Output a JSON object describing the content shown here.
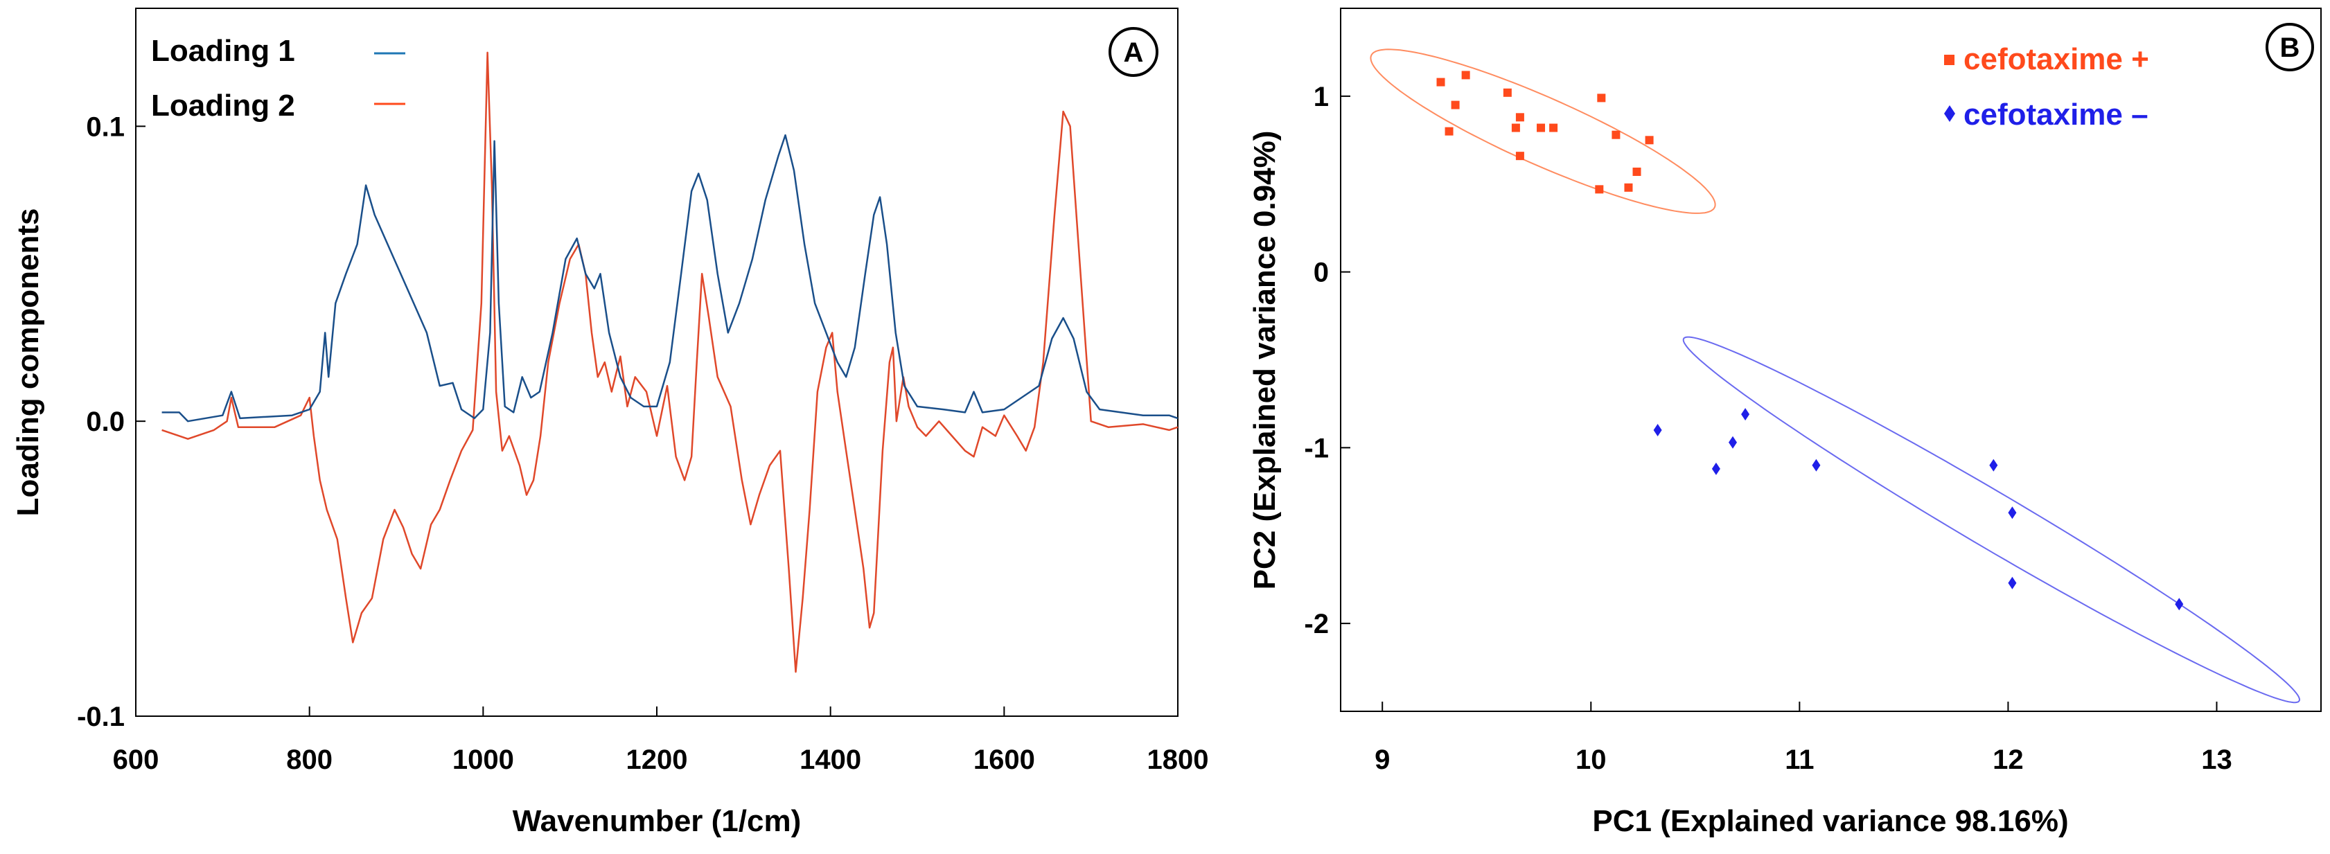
{
  "chart_data": [
    {
      "panel": "A",
      "type": "line",
      "xlabel": "Wavenumber (1/cm)",
      "ylabel": "Loading components",
      "xlim": [
        600,
        1800
      ],
      "ylim": [
        -0.1,
        0.14
      ],
      "x_ticks": [
        "600",
        "800",
        "1000",
        "1200",
        "1400",
        "1600",
        "1800"
      ],
      "y_ticks": [
        "-0.1",
        "0.0",
        "0.1"
      ],
      "series": [
        {
          "name": "Loading 1",
          "color": "#1f77b4",
          "line_color": "#1a4f8a",
          "points": [
            [
              630,
              0.003
            ],
            [
              650,
              0.003
            ],
            [
              660,
              0.0
            ],
            [
              700,
              0.002
            ],
            [
              710,
              0.01
            ],
            [
              720,
              0.001
            ],
            [
              780,
              0.002
            ],
            [
              800,
              0.004
            ],
            [
              812,
              0.01
            ],
            [
              818,
              0.03
            ],
            [
              822,
              0.015
            ],
            [
              830,
              0.04
            ],
            [
              842,
              0.05
            ],
            [
              855,
              0.06
            ],
            [
              865,
              0.08
            ],
            [
              875,
              0.07
            ],
            [
              890,
              0.06
            ],
            [
              905,
              0.05
            ],
            [
              920,
              0.04
            ],
            [
              935,
              0.03
            ],
            [
              950,
              0.012
            ],
            [
              965,
              0.013
            ],
            [
              975,
              0.004
            ],
            [
              990,
              0.001
            ],
            [
              1000,
              0.004
            ],
            [
              1008,
              0.03
            ],
            [
              1013,
              0.095
            ],
            [
              1018,
              0.04
            ],
            [
              1025,
              0.005
            ],
            [
              1035,
              0.003
            ],
            [
              1045,
              0.015
            ],
            [
              1055,
              0.008
            ],
            [
              1065,
              0.01
            ],
            [
              1080,
              0.03
            ],
            [
              1095,
              0.055
            ],
            [
              1108,
              0.062
            ],
            [
              1118,
              0.05
            ],
            [
              1128,
              0.045
            ],
            [
              1135,
              0.05
            ],
            [
              1145,
              0.03
            ],
            [
              1158,
              0.015
            ],
            [
              1170,
              0.008
            ],
            [
              1185,
              0.005
            ],
            [
              1200,
              0.005
            ],
            [
              1215,
              0.02
            ],
            [
              1228,
              0.05
            ],
            [
              1240,
              0.078
            ],
            [
              1248,
              0.084
            ],
            [
              1258,
              0.075
            ],
            [
              1270,
              0.05
            ],
            [
              1282,
              0.03
            ],
            [
              1295,
              0.04
            ],
            [
              1310,
              0.055
            ],
            [
              1325,
              0.075
            ],
            [
              1340,
              0.09
            ],
            [
              1348,
              0.097
            ],
            [
              1358,
              0.085
            ],
            [
              1370,
              0.06
            ],
            [
              1382,
              0.04
            ],
            [
              1395,
              0.03
            ],
            [
              1408,
              0.02
            ],
            [
              1418,
              0.015
            ],
            [
              1428,
              0.025
            ],
            [
              1440,
              0.05
            ],
            [
              1450,
              0.07
            ],
            [
              1457,
              0.076
            ],
            [
              1465,
              0.06
            ],
            [
              1475,
              0.03
            ],
            [
              1485,
              0.012
            ],
            [
              1500,
              0.005
            ],
            [
              1530,
              0.004
            ],
            [
              1555,
              0.003
            ],
            [
              1565,
              0.01
            ],
            [
              1575,
              0.003
            ],
            [
              1600,
              0.004
            ],
            [
              1620,
              0.008
            ],
            [
              1640,
              0.012
            ],
            [
              1655,
              0.028
            ],
            [
              1668,
              0.035
            ],
            [
              1680,
              0.028
            ],
            [
              1695,
              0.01
            ],
            [
              1710,
              0.004
            ],
            [
              1760,
              0.002
            ],
            [
              1790,
              0.002
            ],
            [
              1800,
              0.001
            ]
          ]
        },
        {
          "name": "Loading 2",
          "color": "#ff4a1c",
          "line_color": "#e0482a",
          "points": [
            [
              630,
              -0.003
            ],
            [
              660,
              -0.006
            ],
            [
              690,
              -0.003
            ],
            [
              705,
              0.0
            ],
            [
              710,
              0.008
            ],
            [
              718,
              -0.002
            ],
            [
              760,
              -0.002
            ],
            [
              790,
              0.002
            ],
            [
              800,
              0.008
            ],
            [
              805,
              -0.005
            ],
            [
              812,
              -0.02
            ],
            [
              820,
              -0.03
            ],
            [
              832,
              -0.04
            ],
            [
              842,
              -0.06
            ],
            [
              850,
              -0.075
            ],
            [
              860,
              -0.065
            ],
            [
              872,
              -0.06
            ],
            [
              885,
              -0.04
            ],
            [
              898,
              -0.03
            ],
            [
              908,
              -0.036
            ],
            [
              918,
              -0.045
            ],
            [
              928,
              -0.05
            ],
            [
              940,
              -0.035
            ],
            [
              950,
              -0.03
            ],
            [
              962,
              -0.02
            ],
            [
              975,
              -0.01
            ],
            [
              988,
              -0.003
            ],
            [
              998,
              0.04
            ],
            [
              1005,
              0.125
            ],
            [
              1010,
              0.08
            ],
            [
              1015,
              0.01
            ],
            [
              1022,
              -0.01
            ],
            [
              1030,
              -0.005
            ],
            [
              1042,
              -0.015
            ],
            [
              1050,
              -0.025
            ],
            [
              1058,
              -0.02
            ],
            [
              1066,
              -0.005
            ],
            [
              1075,
              0.02
            ],
            [
              1088,
              0.04
            ],
            [
              1100,
              0.055
            ],
            [
              1110,
              0.06
            ],
            [
              1118,
              0.05
            ],
            [
              1125,
              0.03
            ],
            [
              1132,
              0.015
            ],
            [
              1140,
              0.02
            ],
            [
              1148,
              0.01
            ],
            [
              1158,
              0.022
            ],
            [
              1166,
              0.005
            ],
            [
              1175,
              0.015
            ],
            [
              1188,
              0.01
            ],
            [
              1200,
              -0.005
            ],
            [
              1212,
              0.012
            ],
            [
              1222,
              -0.012
            ],
            [
              1232,
              -0.02
            ],
            [
              1240,
              -0.012
            ],
            [
              1246,
              0.02
            ],
            [
              1252,
              0.05
            ],
            [
              1260,
              0.035
            ],
            [
              1270,
              0.015
            ],
            [
              1285,
              0.005
            ],
            [
              1298,
              -0.02
            ],
            [
              1308,
              -0.035
            ],
            [
              1318,
              -0.025
            ],
            [
              1330,
              -0.015
            ],
            [
              1342,
              -0.01
            ],
            [
              1352,
              -0.05
            ],
            [
              1360,
              -0.085
            ],
            [
              1368,
              -0.06
            ],
            [
              1376,
              -0.03
            ],
            [
              1385,
              0.01
            ],
            [
              1395,
              0.025
            ],
            [
              1402,
              0.03
            ],
            [
              1408,
              0.01
            ],
            [
              1418,
              -0.01
            ],
            [
              1428,
              -0.03
            ],
            [
              1438,
              -0.05
            ],
            [
              1445,
              -0.07
            ],
            [
              1450,
              -0.065
            ],
            [
              1460,
              -0.01
            ],
            [
              1468,
              0.02
            ],
            [
              1472,
              0.025
            ],
            [
              1476,
              0.0
            ],
            [
              1484,
              0.015
            ],
            [
              1490,
              0.005
            ],
            [
              1500,
              -0.002
            ],
            [
              1510,
              -0.005
            ],
            [
              1525,
              0.0
            ],
            [
              1540,
              -0.005
            ],
            [
              1555,
              -0.01
            ],
            [
              1565,
              -0.012
            ],
            [
              1575,
              -0.002
            ],
            [
              1590,
              -0.005
            ],
            [
              1600,
              0.002
            ],
            [
              1615,
              -0.005
            ],
            [
              1625,
              -0.01
            ],
            [
              1635,
              -0.002
            ],
            [
              1645,
              0.02
            ],
            [
              1658,
              0.07
            ],
            [
              1668,
              0.105
            ],
            [
              1676,
              0.1
            ],
            [
              1688,
              0.05
            ],
            [
              1700,
              0.0
            ],
            [
              1720,
              -0.002
            ],
            [
              1760,
              -0.001
            ],
            [
              1790,
              -0.003
            ],
            [
              1800,
              -0.002
            ]
          ]
        }
      ],
      "legend": {
        "position": "top-left",
        "entries": [
          "Loading 1",
          "Loading 2"
        ]
      },
      "grid": false
    },
    {
      "panel": "B",
      "type": "scatter",
      "xlabel": "PC1 (Explained variance 98.16%)",
      "ylabel": "PC2 (Explained variance 0.94%)",
      "xlim": [
        8.8,
        13.5
      ],
      "ylim": [
        -2.5,
        1.5
      ],
      "x_ticks": [
        "9",
        "10",
        "11",
        "12",
        "13"
      ],
      "y_ticks": [
        "-2",
        "-1",
        "0",
        "1"
      ],
      "series": [
        {
          "name": "cefotaxime +",
          "marker": "square",
          "color": "#ff4a1c",
          "points": [
            [
              9.28,
              1.08
            ],
            [
              9.4,
              1.12
            ],
            [
              9.35,
              0.95
            ],
            [
              9.32,
              0.8
            ],
            [
              9.6,
              1.02
            ],
            [
              9.66,
              0.88
            ],
            [
              9.64,
              0.82
            ],
            [
              9.66,
              0.66
            ],
            [
              9.76,
              0.82
            ],
            [
              9.82,
              0.82
            ],
            [
              10.05,
              0.99
            ],
            [
              10.12,
              0.78
            ],
            [
              10.28,
              0.75
            ],
            [
              10.22,
              0.57
            ],
            [
              10.18,
              0.48
            ],
            [
              10.04,
              0.47
            ]
          ]
        },
        {
          "name": "cefotaxime –",
          "marker": "diamond",
          "color": "#1f1fe8",
          "points": [
            [
              10.32,
              -0.9
            ],
            [
              10.6,
              -1.12
            ],
            [
              10.68,
              -0.97
            ],
            [
              10.74,
              -0.81
            ],
            [
              11.08,
              -1.1
            ],
            [
              11.93,
              -1.1
            ],
            [
              12.02,
              -1.37
            ],
            [
              12.02,
              -1.77
            ],
            [
              12.82,
              -1.89
            ]
          ]
        }
      ],
      "ellipses": [
        {
          "series": "cefotaxime +",
          "color": "#ff8c60",
          "center": [
            9.77,
            0.8
          ],
          "semi_major": 0.93,
          "semi_minor": 0.185,
          "angle_deg": -28
        },
        {
          "series": "cefotaxime –",
          "color": "#6a6af0",
          "center": [
            11.92,
            -1.41
          ],
          "semi_major": 1.8,
          "semi_minor": 0.15,
          "angle_deg": -35
        }
      ],
      "legend": {
        "position": "top-right",
        "entries": [
          "cefotaxime +",
          "cefotaxime –"
        ]
      },
      "grid": false
    }
  ],
  "panel_labels": [
    "A",
    "B"
  ]
}
